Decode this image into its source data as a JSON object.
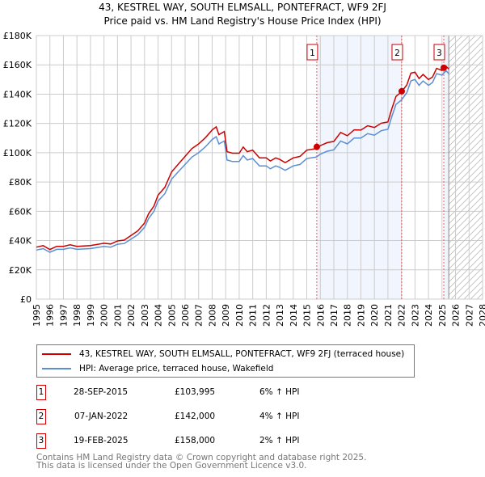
{
  "chart_data": {
    "type": "line",
    "title": "43, KESTREL WAY, SOUTH ELMSALL, PONTEFRACT, WF9 2FJ",
    "subtitle": "Price paid vs. HM Land Registry's House Price Index (HPI)",
    "xlim": [
      1995,
      2028
    ],
    "ylim": [
      0,
      180000
    ],
    "y_ticks": [
      0,
      20000,
      40000,
      60000,
      80000,
      100000,
      120000,
      140000,
      160000,
      180000
    ],
    "y_tick_labels": [
      "£0",
      "£20K",
      "£40K",
      "£60K",
      "£80K",
      "£100K",
      "£120K",
      "£140K",
      "£160K",
      "£180K"
    ],
    "x_ticks": [
      1995,
      1996,
      1997,
      1998,
      1999,
      2000,
      2001,
      2002,
      2003,
      2004,
      2005,
      2006,
      2007,
      2008,
      2009,
      2010,
      2011,
      2012,
      2013,
      2014,
      2015,
      2016,
      2017,
      2018,
      2019,
      2020,
      2021,
      2022,
      2023,
      2024,
      2025,
      2026,
      2027,
      2028
    ],
    "grid": true,
    "forecast_start": 2025.5,
    "hpi_series": {
      "name": "HPI: Average price, terraced house, Wakefield",
      "color": "#5b8fd4",
      "x": [
        1995,
        1995.5,
        1996,
        1996.5,
        1997,
        1997.5,
        1998,
        1999,
        2000,
        2000.5,
        2001,
        2001.5,
        2002,
        2002.5,
        2003,
        2003.3,
        2003.7,
        2004,
        2004.5,
        2005,
        2005.5,
        2006,
        2006.5,
        2007,
        2007.5,
        2008,
        2008.3,
        2008.5,
        2008.9,
        2009.1,
        2009.5,
        2010,
        2010.3,
        2010.6,
        2011,
        2011.5,
        2012,
        2012.3,
        2012.7,
        2013,
        2013.4,
        2014,
        2014.5,
        2015,
        2015.7,
        2016,
        2016.5,
        2017,
        2017.5,
        2018,
        2018.5,
        2019,
        2019.5,
        2020,
        2020.5,
        2021,
        2021.3,
        2021.6,
        2022,
        2022.4,
        2022.7,
        2023,
        2023.3,
        2023.6,
        2024,
        2024.3,
        2024.6,
        2025,
        2025.3,
        2025.5
      ],
      "y": [
        33500,
        34500,
        32000,
        34000,
        34000,
        35000,
        34000,
        34500,
        36000,
        35500,
        37500,
        38000,
        41000,
        44000,
        49000,
        55000,
        60000,
        67000,
        72000,
        82000,
        87000,
        92000,
        97000,
        100000,
        104000,
        109000,
        111000,
        106000,
        108000,
        95000,
        94000,
        94000,
        98000,
        95000,
        96000,
        91000,
        91000,
        89000,
        91000,
        90000,
        88000,
        91000,
        92000,
        96000,
        97000,
        99000,
        101000,
        102000,
        108000,
        106000,
        110000,
        110000,
        113000,
        112000,
        115000,
        116000,
        125000,
        133000,
        136000,
        141000,
        149000,
        150000,
        146000,
        149000,
        146000,
        148000,
        154000,
        153000,
        156000,
        154000
      ]
    },
    "price_series": {
      "name": "43, KESTREL WAY, SOUTH ELMSALL, PONTEFRACT, WF9 2FJ (terraced house)",
      "color": "#cc0000"
    },
    "sales": [
      {
        "id": "1",
        "x": 2015.74,
        "date": "28-SEP-2015",
        "price": 103995,
        "price_label": "£103,995",
        "hpi": "6% ↑ HPI"
      },
      {
        "id": "2",
        "x": 2022.02,
        "date": "07-JAN-2022",
        "price": 142000,
        "price_label": "£142,000",
        "hpi": "4% ↑ HPI"
      },
      {
        "id": "3",
        "x": 2025.13,
        "date": "19-FEB-2025",
        "price": 158000,
        "price_label": "£158,000",
        "hpi": "2% ↑ HPI"
      }
    ]
  },
  "footer": {
    "line1": "Contains HM Land Registry data © Crown copyright and database right 2025.",
    "line2": "This data is licensed under the Open Government Licence v3.0."
  }
}
